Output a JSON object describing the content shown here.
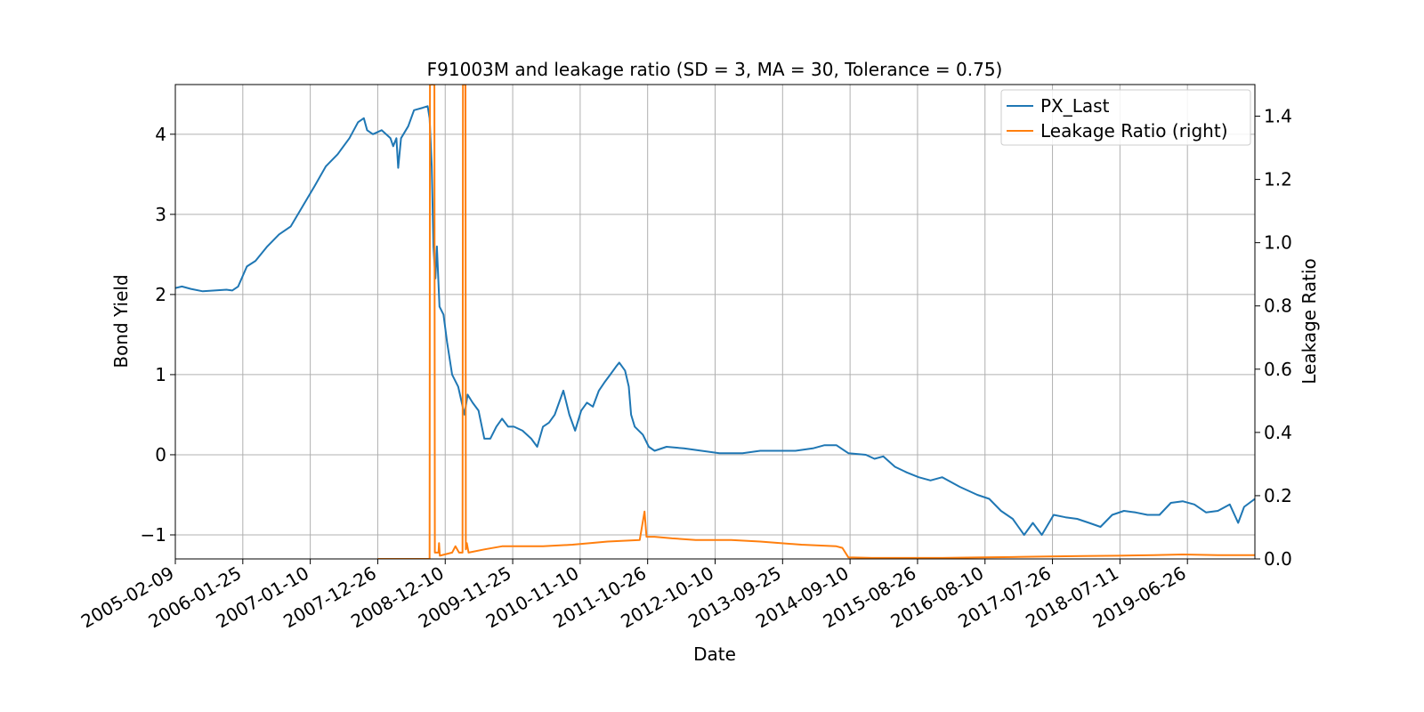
{
  "chart_data": {
    "type": "line",
    "title": "F91003M and leakage ratio (SD = 3, MA = 30, Tolerance  = 0.75)",
    "xlabel": "Date",
    "ylabel": "Bond Yield",
    "ylabel_right": "Leakage Ratio",
    "x_ticks": [
      "2005-02-09",
      "2006-01-25",
      "2007-01-10",
      "2007-12-26",
      "2008-12-10",
      "2009-11-25",
      "2010-11-10",
      "2011-10-26",
      "2012-10-10",
      "2013-09-25",
      "2014-09-10",
      "2015-08-26",
      "2016-08-10",
      "2017-07-26",
      "2018-07-11",
      "2019-06-26"
    ],
    "xlim": [
      "2005-02-09",
      "2020-06-10"
    ],
    "ylim": [
      -1.3,
      4.62
    ],
    "ylim_right": [
      0.0,
      1.5
    ],
    "y_ticks": [
      -1,
      0,
      1,
      2,
      3,
      4
    ],
    "y_ticks_right": [
      0.0,
      0.2,
      0.4,
      0.6,
      0.8,
      1.0,
      1.2,
      1.4
    ],
    "grid": true,
    "legend_position": "top-right",
    "series": [
      {
        "name": "PX_Last",
        "axis": "left",
        "color": "#1f77b4",
        "points": [
          [
            "2005-02-09",
            2.08
          ],
          [
            "2005-03-15",
            2.1
          ],
          [
            "2005-05-01",
            2.07
          ],
          [
            "2005-07-01",
            2.04
          ],
          [
            "2005-09-01",
            2.05
          ],
          [
            "2005-11-01",
            2.06
          ],
          [
            "2005-12-01",
            2.05
          ],
          [
            "2006-01-01",
            2.1
          ],
          [
            "2006-02-15",
            2.35
          ],
          [
            "2006-04-01",
            2.42
          ],
          [
            "2006-06-01",
            2.6
          ],
          [
            "2006-08-01",
            2.75
          ],
          [
            "2006-10-01",
            2.85
          ],
          [
            "2006-12-01",
            3.1
          ],
          [
            "2007-02-01",
            3.35
          ],
          [
            "2007-04-01",
            3.6
          ],
          [
            "2007-06-01",
            3.75
          ],
          [
            "2007-08-01",
            3.95
          ],
          [
            "2007-09-15",
            4.15
          ],
          [
            "2007-10-15",
            4.2
          ],
          [
            "2007-11-01",
            4.05
          ],
          [
            "2007-12-01",
            4.0
          ],
          [
            "2008-01-15",
            4.05
          ],
          [
            "2008-03-01",
            3.95
          ],
          [
            "2008-03-15",
            3.85
          ],
          [
            "2008-04-01",
            3.95
          ],
          [
            "2008-04-10",
            3.58
          ],
          [
            "2008-04-25",
            3.95
          ],
          [
            "2008-06-01",
            4.1
          ],
          [
            "2008-07-01",
            4.3
          ],
          [
            "2008-08-15",
            4.33
          ],
          [
            "2008-09-10",
            4.35
          ],
          [
            "2008-09-20",
            4.2
          ],
          [
            "2008-10-01",
            3.6
          ],
          [
            "2008-10-10",
            2.6
          ],
          [
            "2008-10-20",
            2.2
          ],
          [
            "2008-10-28",
            2.6
          ],
          [
            "2008-11-10",
            1.85
          ],
          [
            "2008-12-01",
            1.75
          ],
          [
            "2008-12-20",
            1.4
          ],
          [
            "2009-01-15",
            1.0
          ],
          [
            "2009-02-15",
            0.85
          ],
          [
            "2009-03-20",
            0.5
          ],
          [
            "2009-04-05",
            0.75
          ],
          [
            "2009-05-01",
            0.65
          ],
          [
            "2009-06-01",
            0.55
          ],
          [
            "2009-07-01",
            0.2
          ],
          [
            "2009-08-01",
            0.2
          ],
          [
            "2009-09-01",
            0.35
          ],
          [
            "2009-10-01",
            0.45
          ],
          [
            "2009-11-01",
            0.35
          ],
          [
            "2009-12-01",
            0.35
          ],
          [
            "2010-01-15",
            0.3
          ],
          [
            "2010-03-01",
            0.2
          ],
          [
            "2010-04-01",
            0.1
          ],
          [
            "2010-05-01",
            0.35
          ],
          [
            "2010-06-01",
            0.4
          ],
          [
            "2010-07-01",
            0.5
          ],
          [
            "2010-08-15",
            0.8
          ],
          [
            "2010-09-15",
            0.5
          ],
          [
            "2010-10-15",
            0.3
          ],
          [
            "2010-11-15",
            0.55
          ],
          [
            "2010-12-15",
            0.65
          ],
          [
            "2011-01-15",
            0.6
          ],
          [
            "2011-02-15",
            0.8
          ],
          [
            "2011-03-15",
            0.9
          ],
          [
            "2011-04-15",
            1.0
          ],
          [
            "2011-05-15",
            1.1
          ],
          [
            "2011-06-01",
            1.15
          ],
          [
            "2011-07-01",
            1.05
          ],
          [
            "2011-07-20",
            0.85
          ],
          [
            "2011-08-01",
            0.5
          ],
          [
            "2011-08-20",
            0.35
          ],
          [
            "2011-10-01",
            0.25
          ],
          [
            "2011-11-01",
            0.1
          ],
          [
            "2011-12-01",
            0.05
          ],
          [
            "2012-02-01",
            0.1
          ],
          [
            "2012-05-01",
            0.08
          ],
          [
            "2012-08-01",
            0.05
          ],
          [
            "2012-11-01",
            0.02
          ],
          [
            "2013-03-01",
            0.02
          ],
          [
            "2013-06-01",
            0.05
          ],
          [
            "2013-09-01",
            0.05
          ],
          [
            "2013-12-01",
            0.05
          ],
          [
            "2014-03-01",
            0.08
          ],
          [
            "2014-05-01",
            0.12
          ],
          [
            "2014-07-01",
            0.12
          ],
          [
            "2014-09-01",
            0.02
          ],
          [
            "2014-12-01",
            0.0
          ],
          [
            "2015-01-15",
            -0.05
          ],
          [
            "2015-03-01",
            -0.02
          ],
          [
            "2015-05-01",
            -0.15
          ],
          [
            "2015-07-01",
            -0.22
          ],
          [
            "2015-09-01",
            -0.28
          ],
          [
            "2015-11-01",
            -0.32
          ],
          [
            "2016-01-01",
            -0.28
          ],
          [
            "2016-04-01",
            -0.4
          ],
          [
            "2016-07-01",
            -0.5
          ],
          [
            "2016-09-01",
            -0.55
          ],
          [
            "2016-11-01",
            -0.7
          ],
          [
            "2017-01-01",
            -0.8
          ],
          [
            "2017-03-01",
            -1.0
          ],
          [
            "2017-04-15",
            -0.85
          ],
          [
            "2017-06-01",
            -1.0
          ],
          [
            "2017-08-01",
            -0.75
          ],
          [
            "2017-10-01",
            -0.78
          ],
          [
            "2017-12-01",
            -0.8
          ],
          [
            "2018-02-01",
            -0.85
          ],
          [
            "2018-04-01",
            -0.9
          ],
          [
            "2018-06-01",
            -0.75
          ],
          [
            "2018-08-01",
            -0.7
          ],
          [
            "2018-10-01",
            -0.72
          ],
          [
            "2018-12-01",
            -0.75
          ],
          [
            "2019-02-01",
            -0.75
          ],
          [
            "2019-04-01",
            -0.6
          ],
          [
            "2019-06-01",
            -0.58
          ],
          [
            "2019-08-01",
            -0.62
          ],
          [
            "2019-10-01",
            -0.72
          ],
          [
            "2019-12-01",
            -0.7
          ],
          [
            "2020-02-01",
            -0.62
          ],
          [
            "2020-03-15",
            -0.85
          ],
          [
            "2020-04-15",
            -0.65
          ],
          [
            "2020-06-10",
            -0.55
          ]
        ]
      },
      {
        "name": "Leakage Ratio (right)",
        "axis": "right",
        "color": "#ff7f0e",
        "points": [
          [
            "2007-12-26",
            0.0
          ],
          [
            "2008-06-01",
            0.0
          ],
          [
            "2008-09-01",
            0.0
          ],
          [
            "2008-09-20",
            0.0
          ],
          [
            "2008-09-22",
            1.5
          ],
          [
            "2008-10-15",
            1.5
          ],
          [
            "2008-10-17",
            0.02
          ],
          [
            "2008-11-05",
            0.02
          ],
          [
            "2008-11-08",
            0.05
          ],
          [
            "2008-11-12",
            0.01
          ],
          [
            "2009-01-15",
            0.02
          ],
          [
            "2009-02-01",
            0.04
          ],
          [
            "2009-02-20",
            0.02
          ],
          [
            "2009-03-10",
            0.02
          ],
          [
            "2009-03-12",
            1.5
          ],
          [
            "2009-03-25",
            1.5
          ],
          [
            "2009-03-27",
            0.03
          ],
          [
            "2009-04-01",
            0.05
          ],
          [
            "2009-04-10",
            0.02
          ],
          [
            "2009-07-01",
            0.03
          ],
          [
            "2009-10-01",
            0.04
          ],
          [
            "2010-05-01",
            0.04
          ],
          [
            "2010-10-01",
            0.045
          ],
          [
            "2011-01-01",
            0.05
          ],
          [
            "2011-04-01",
            0.055
          ],
          [
            "2011-09-15",
            0.06
          ],
          [
            "2011-10-10",
            0.15
          ],
          [
            "2011-10-20",
            0.07
          ],
          [
            "2011-12-01",
            0.07
          ],
          [
            "2012-03-01",
            0.065
          ],
          [
            "2012-07-01",
            0.06
          ],
          [
            "2013-01-01",
            0.06
          ],
          [
            "2013-06-01",
            0.055
          ],
          [
            "2014-01-01",
            0.045
          ],
          [
            "2014-07-01",
            0.04
          ],
          [
            "2014-08-01",
            0.035
          ],
          [
            "2014-09-01",
            0.005
          ],
          [
            "2015-01-01",
            0.003
          ],
          [
            "2016-01-01",
            0.003
          ],
          [
            "2016-08-01",
            0.005
          ],
          [
            "2017-01-01",
            0.006
          ],
          [
            "2017-07-01",
            0.008
          ],
          [
            "2018-01-01",
            0.009
          ],
          [
            "2018-07-01",
            0.01
          ],
          [
            "2019-01-01",
            0.012
          ],
          [
            "2019-06-01",
            0.014
          ],
          [
            "2019-12-01",
            0.012
          ],
          [
            "2020-06-10",
            0.012
          ]
        ]
      }
    ]
  }
}
